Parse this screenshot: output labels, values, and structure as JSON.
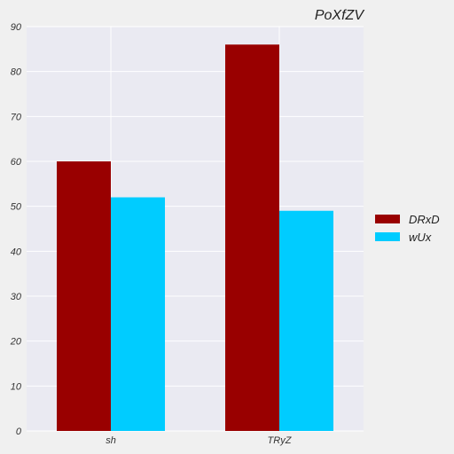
{
  "chart_data": {
    "type": "bar",
    "title": "PoXfZV",
    "xlabel": "",
    "ylabel": "",
    "categories": [
      "sh",
      "TRyZ"
    ],
    "series": [
      {
        "name": "DRxD",
        "values": [
          60,
          86
        ],
        "color": "#990000"
      },
      {
        "name": "wUx",
        "values": [
          52,
          49
        ],
        "color": "#00ccff"
      }
    ],
    "ylim": [
      0,
      90
    ],
    "yticks": [
      0,
      10,
      20,
      30,
      40,
      50,
      60,
      70,
      80,
      90
    ],
    "grid": true,
    "legend_position": "right"
  },
  "colors": {
    "page_background": "#f0f0f0",
    "plot_background": "#eaeaf2",
    "grid": "#ffffff"
  }
}
